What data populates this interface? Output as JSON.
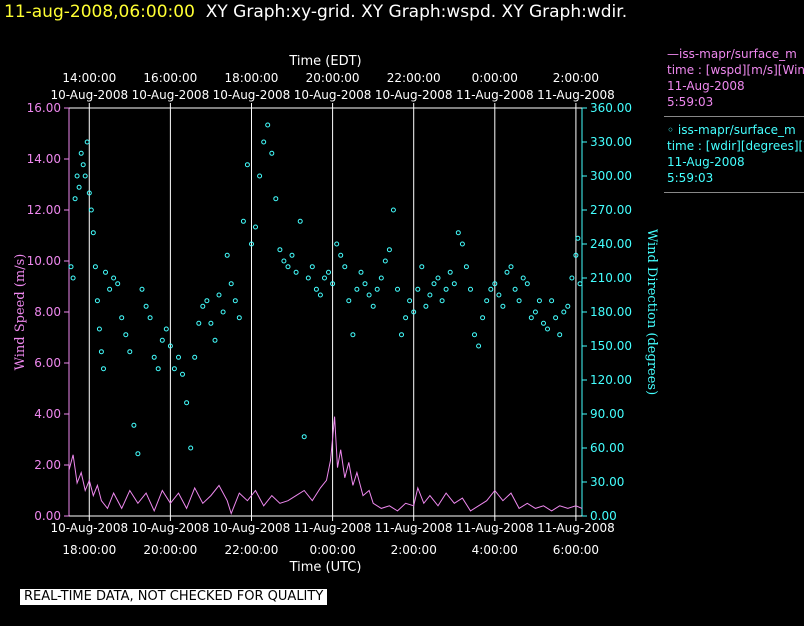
{
  "title": {
    "date": "11-aug-2008,06:00:00",
    "graphs": "XY Graph:xy-grid.  XY Graph:wspd.  XY Graph:wdir."
  },
  "legend": [
    {
      "line1": "—iss-mapr/surface_m",
      "line2": "time : [wspd][m/s][Wind",
      "line3": "11-Aug-2008",
      "line4": "5:59:03"
    },
    {
      "line1": "◦ iss-mapr/surface_m",
      "line2": "time : [wdir][degrees][W",
      "line3": "11-Aug-2008",
      "line4": "5:59:03"
    }
  ],
  "banner": "REAL-TIME DATA, NOT CHECKED FOR QUALITY",
  "colors": {
    "wspd": "#ee88ee",
    "wdir": "#44ffff",
    "title_date": "#ffff33",
    "grid": "#ffffff"
  },
  "chart_data": {
    "type": "line",
    "top_axis_title": "Time (EDT)",
    "xlabel": "Time (UTC)",
    "ylabel_left": "Wind Speed (m/s)",
    "ylabel_right": "Wind Direction (degrees)",
    "xlim_utc_hours": [
      17.5,
      30.15
    ],
    "ylim_left": [
      0,
      16
    ],
    "ylim_right": [
      0,
      360
    ],
    "grid": "vertical",
    "bottom_ticks": [
      {
        "t": 18,
        "date": "10-Aug-2008",
        "time": "18:00:00"
      },
      {
        "t": 20,
        "date": "10-Aug-2008",
        "time": "20:00:00"
      },
      {
        "t": 22,
        "date": "10-Aug-2008",
        "time": "22:00:00"
      },
      {
        "t": 24,
        "date": "11-Aug-2008",
        "time": "0:00:00"
      },
      {
        "t": 26,
        "date": "11-Aug-2008",
        "time": "2:00:00"
      },
      {
        "t": 28,
        "date": "11-Aug-2008",
        "time": "4:00:00"
      },
      {
        "t": 30,
        "date": "11-Aug-2008",
        "time": "6:00:00"
      }
    ],
    "top_ticks": [
      {
        "t": 18,
        "time": "14:00:00",
        "date": "10-Aug-2008"
      },
      {
        "t": 20,
        "time": "16:00:00",
        "date": "10-Aug-2008"
      },
      {
        "t": 22,
        "time": "18:00:00",
        "date": "10-Aug-2008"
      },
      {
        "t": 24,
        "time": "20:00:00",
        "date": "10-Aug-2008"
      },
      {
        "t": 26,
        "time": "22:00:00",
        "date": "10-Aug-2008"
      },
      {
        "t": 28,
        "time": "0:00:00",
        "date": "11-Aug-2008"
      },
      {
        "t": 30,
        "time": "2:00:00",
        "date": "11-Aug-2008"
      }
    ],
    "left_ticks": [
      "0.00",
      "2.00",
      "4.00",
      "6.00",
      "8.00",
      "10.00",
      "12.00",
      "14.00",
      "16.00"
    ],
    "right_ticks": [
      "0.00",
      "30.00",
      "60.00",
      "90.00",
      "120.00",
      "150.00",
      "180.00",
      "210.00",
      "240.00",
      "270.00",
      "300.00",
      "330.00",
      "360.00"
    ],
    "series": [
      {
        "name": "iss-mapr/surface_m time : [wspd][m/s][Wind",
        "style": "line",
        "points": [
          [
            17.5,
            1.8
          ],
          [
            17.6,
            2.4
          ],
          [
            17.7,
            1.3
          ],
          [
            17.8,
            1.7
          ],
          [
            17.9,
            1.0
          ],
          [
            18.0,
            1.4
          ],
          [
            18.1,
            0.8
          ],
          [
            18.2,
            1.2
          ],
          [
            18.3,
            0.6
          ],
          [
            18.45,
            0.3
          ],
          [
            18.6,
            0.9
          ],
          [
            18.8,
            0.3
          ],
          [
            19.0,
            1.0
          ],
          [
            19.2,
            0.5
          ],
          [
            19.4,
            0.9
          ],
          [
            19.6,
            0.2
          ],
          [
            19.8,
            1.0
          ],
          [
            20.0,
            0.5
          ],
          [
            20.2,
            0.9
          ],
          [
            20.4,
            0.3
          ],
          [
            20.6,
            1.1
          ],
          [
            20.8,
            0.5
          ],
          [
            21.0,
            0.8
          ],
          [
            21.2,
            1.2
          ],
          [
            21.4,
            0.6
          ],
          [
            21.5,
            0.1
          ],
          [
            21.7,
            0.9
          ],
          [
            21.9,
            0.6
          ],
          [
            22.1,
            1.0
          ],
          [
            22.3,
            0.4
          ],
          [
            22.5,
            0.8
          ],
          [
            22.7,
            0.5
          ],
          [
            22.9,
            0.6
          ],
          [
            23.1,
            0.8
          ],
          [
            23.3,
            1.0
          ],
          [
            23.5,
            0.6
          ],
          [
            23.7,
            1.1
          ],
          [
            23.85,
            1.4
          ],
          [
            23.95,
            2.2
          ],
          [
            24.05,
            3.9
          ],
          [
            24.12,
            1.9
          ],
          [
            24.2,
            2.6
          ],
          [
            24.3,
            1.5
          ],
          [
            24.4,
            2.1
          ],
          [
            24.5,
            1.2
          ],
          [
            24.6,
            1.7
          ],
          [
            24.75,
            0.8
          ],
          [
            24.9,
            1.0
          ],
          [
            25.0,
            0.5
          ],
          [
            25.2,
            0.3
          ],
          [
            25.4,
            0.4
          ],
          [
            25.6,
            0.2
          ],
          [
            25.8,
            0.5
          ],
          [
            26.0,
            0.4
          ],
          [
            26.1,
            1.1
          ],
          [
            26.25,
            0.5
          ],
          [
            26.4,
            0.8
          ],
          [
            26.6,
            0.4
          ],
          [
            26.8,
            0.9
          ],
          [
            27.0,
            0.5
          ],
          [
            27.2,
            0.7
          ],
          [
            27.4,
            0.2
          ],
          [
            27.6,
            0.4
          ],
          [
            27.8,
            0.6
          ],
          [
            28.0,
            1.0
          ],
          [
            28.2,
            0.6
          ],
          [
            28.4,
            0.9
          ],
          [
            28.6,
            0.3
          ],
          [
            28.8,
            0.5
          ],
          [
            29.0,
            0.3
          ],
          [
            29.2,
            0.4
          ],
          [
            29.4,
            0.2
          ],
          [
            29.6,
            0.4
          ],
          [
            29.8,
            0.3
          ],
          [
            30.0,
            0.4
          ],
          [
            30.15,
            0.3
          ]
        ]
      },
      {
        "name": "iss-mapr/surface_m time : [wdir][degrees][W",
        "style": "scatter",
        "points": [
          [
            17.55,
            220
          ],
          [
            17.6,
            210
          ],
          [
            17.65,
            280
          ],
          [
            17.7,
            300
          ],
          [
            17.75,
            290
          ],
          [
            17.8,
            320
          ],
          [
            17.85,
            310
          ],
          [
            17.9,
            300
          ],
          [
            17.95,
            330
          ],
          [
            18.0,
            285
          ],
          [
            18.05,
            270
          ],
          [
            18.1,
            250
          ],
          [
            18.15,
            220
          ],
          [
            18.2,
            190
          ],
          [
            18.25,
            165
          ],
          [
            18.3,
            145
          ],
          [
            18.35,
            130
          ],
          [
            18.4,
            215
          ],
          [
            18.5,
            200
          ],
          [
            18.6,
            210
          ],
          [
            18.7,
            205
          ],
          [
            18.8,
            175
          ],
          [
            18.9,
            160
          ],
          [
            19.0,
            145
          ],
          [
            19.1,
            80
          ],
          [
            19.2,
            55
          ],
          [
            19.3,
            200
          ],
          [
            19.4,
            185
          ],
          [
            19.5,
            175
          ],
          [
            19.6,
            140
          ],
          [
            19.7,
            130
          ],
          [
            19.8,
            155
          ],
          [
            19.9,
            165
          ],
          [
            20.0,
            150
          ],
          [
            20.1,
            130
          ],
          [
            20.2,
            140
          ],
          [
            20.3,
            125
          ],
          [
            20.4,
            100
          ],
          [
            20.5,
            60
          ],
          [
            20.6,
            140
          ],
          [
            20.7,
            170
          ],
          [
            20.8,
            185
          ],
          [
            20.9,
            190
          ],
          [
            21.0,
            170
          ],
          [
            21.1,
            155
          ],
          [
            21.2,
            195
          ],
          [
            21.3,
            180
          ],
          [
            21.4,
            230
          ],
          [
            21.5,
            205
          ],
          [
            21.6,
            190
          ],
          [
            21.7,
            175
          ],
          [
            21.8,
            260
          ],
          [
            21.9,
            310
          ],
          [
            22.0,
            240
          ],
          [
            22.1,
            255
          ],
          [
            22.2,
            300
          ],
          [
            22.3,
            330
          ],
          [
            22.4,
            345
          ],
          [
            22.5,
            320
          ],
          [
            22.6,
            280
          ],
          [
            22.7,
            235
          ],
          [
            22.8,
            225
          ],
          [
            22.9,
            220
          ],
          [
            23.0,
            230
          ],
          [
            23.1,
            215
          ],
          [
            23.2,
            260
          ],
          [
            23.3,
            70
          ],
          [
            23.4,
            210
          ],
          [
            23.5,
            220
          ],
          [
            23.6,
            200
          ],
          [
            23.7,
            195
          ],
          [
            23.8,
            210
          ],
          [
            23.9,
            215
          ],
          [
            24.0,
            205
          ],
          [
            24.1,
            240
          ],
          [
            24.2,
            230
          ],
          [
            24.3,
            220
          ],
          [
            24.4,
            190
          ],
          [
            24.5,
            160
          ],
          [
            24.6,
            200
          ],
          [
            24.7,
            215
          ],
          [
            24.8,
            205
          ],
          [
            24.9,
            195
          ],
          [
            25.0,
            185
          ],
          [
            25.1,
            200
          ],
          [
            25.2,
            210
          ],
          [
            25.3,
            225
          ],
          [
            25.4,
            235
          ],
          [
            25.5,
            270
          ],
          [
            25.6,
            200
          ],
          [
            25.7,
            160
          ],
          [
            25.8,
            175
          ],
          [
            25.9,
            190
          ],
          [
            26.0,
            180
          ],
          [
            26.1,
            200
          ],
          [
            26.2,
            220
          ],
          [
            26.3,
            185
          ],
          [
            26.4,
            195
          ],
          [
            26.5,
            205
          ],
          [
            26.6,
            210
          ],
          [
            26.7,
            190
          ],
          [
            26.8,
            200
          ],
          [
            26.9,
            215
          ],
          [
            27.0,
            205
          ],
          [
            27.1,
            250
          ],
          [
            27.2,
            240
          ],
          [
            27.3,
            220
          ],
          [
            27.4,
            200
          ],
          [
            27.5,
            160
          ],
          [
            27.6,
            150
          ],
          [
            27.7,
            175
          ],
          [
            27.8,
            190
          ],
          [
            27.9,
            200
          ],
          [
            28.0,
            205
          ],
          [
            28.1,
            195
          ],
          [
            28.2,
            185
          ],
          [
            28.3,
            215
          ],
          [
            28.4,
            220
          ],
          [
            28.5,
            200
          ],
          [
            28.6,
            190
          ],
          [
            28.7,
            210
          ],
          [
            28.8,
            205
          ],
          [
            28.9,
            175
          ],
          [
            29.0,
            180
          ],
          [
            29.1,
            190
          ],
          [
            29.2,
            170
          ],
          [
            29.3,
            165
          ],
          [
            29.4,
            190
          ],
          [
            29.5,
            175
          ],
          [
            29.6,
            160
          ],
          [
            29.7,
            180
          ],
          [
            29.8,
            185
          ],
          [
            29.9,
            210
          ],
          [
            30.0,
            230
          ],
          [
            30.05,
            245
          ],
          [
            30.1,
            205
          ]
        ]
      }
    ]
  }
}
